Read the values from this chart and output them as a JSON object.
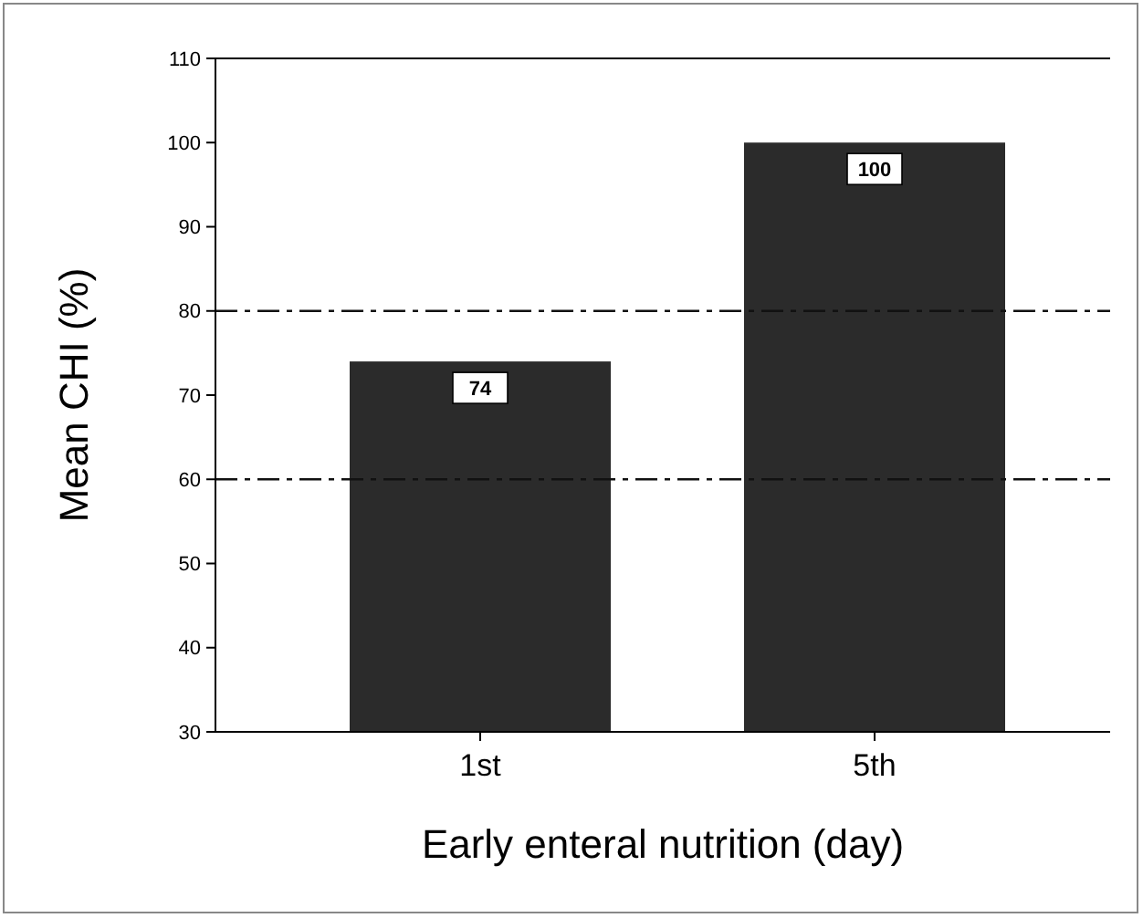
{
  "chart_data": {
    "type": "bar",
    "xlabel": "Early enteral nutrition (day)",
    "ylabel": "Mean CHI (%)",
    "categories": [
      "1st",
      "5th"
    ],
    "values": [
      74,
      100
    ],
    "value_labels": [
      "74",
      "100"
    ],
    "color": "#2b2b2b",
    "ylim": [
      30,
      110
    ],
    "yticks": [
      30,
      40,
      50,
      60,
      70,
      80,
      90,
      100,
      110
    ],
    "ref_lines": [
      {
        "axis": "y",
        "value": 60,
        "color": "#111111",
        "line_style": "dashed"
      },
      {
        "axis": "y",
        "value": 80,
        "color": "#111111",
        "line_style": "dashed"
      }
    ],
    "grid": false
  }
}
